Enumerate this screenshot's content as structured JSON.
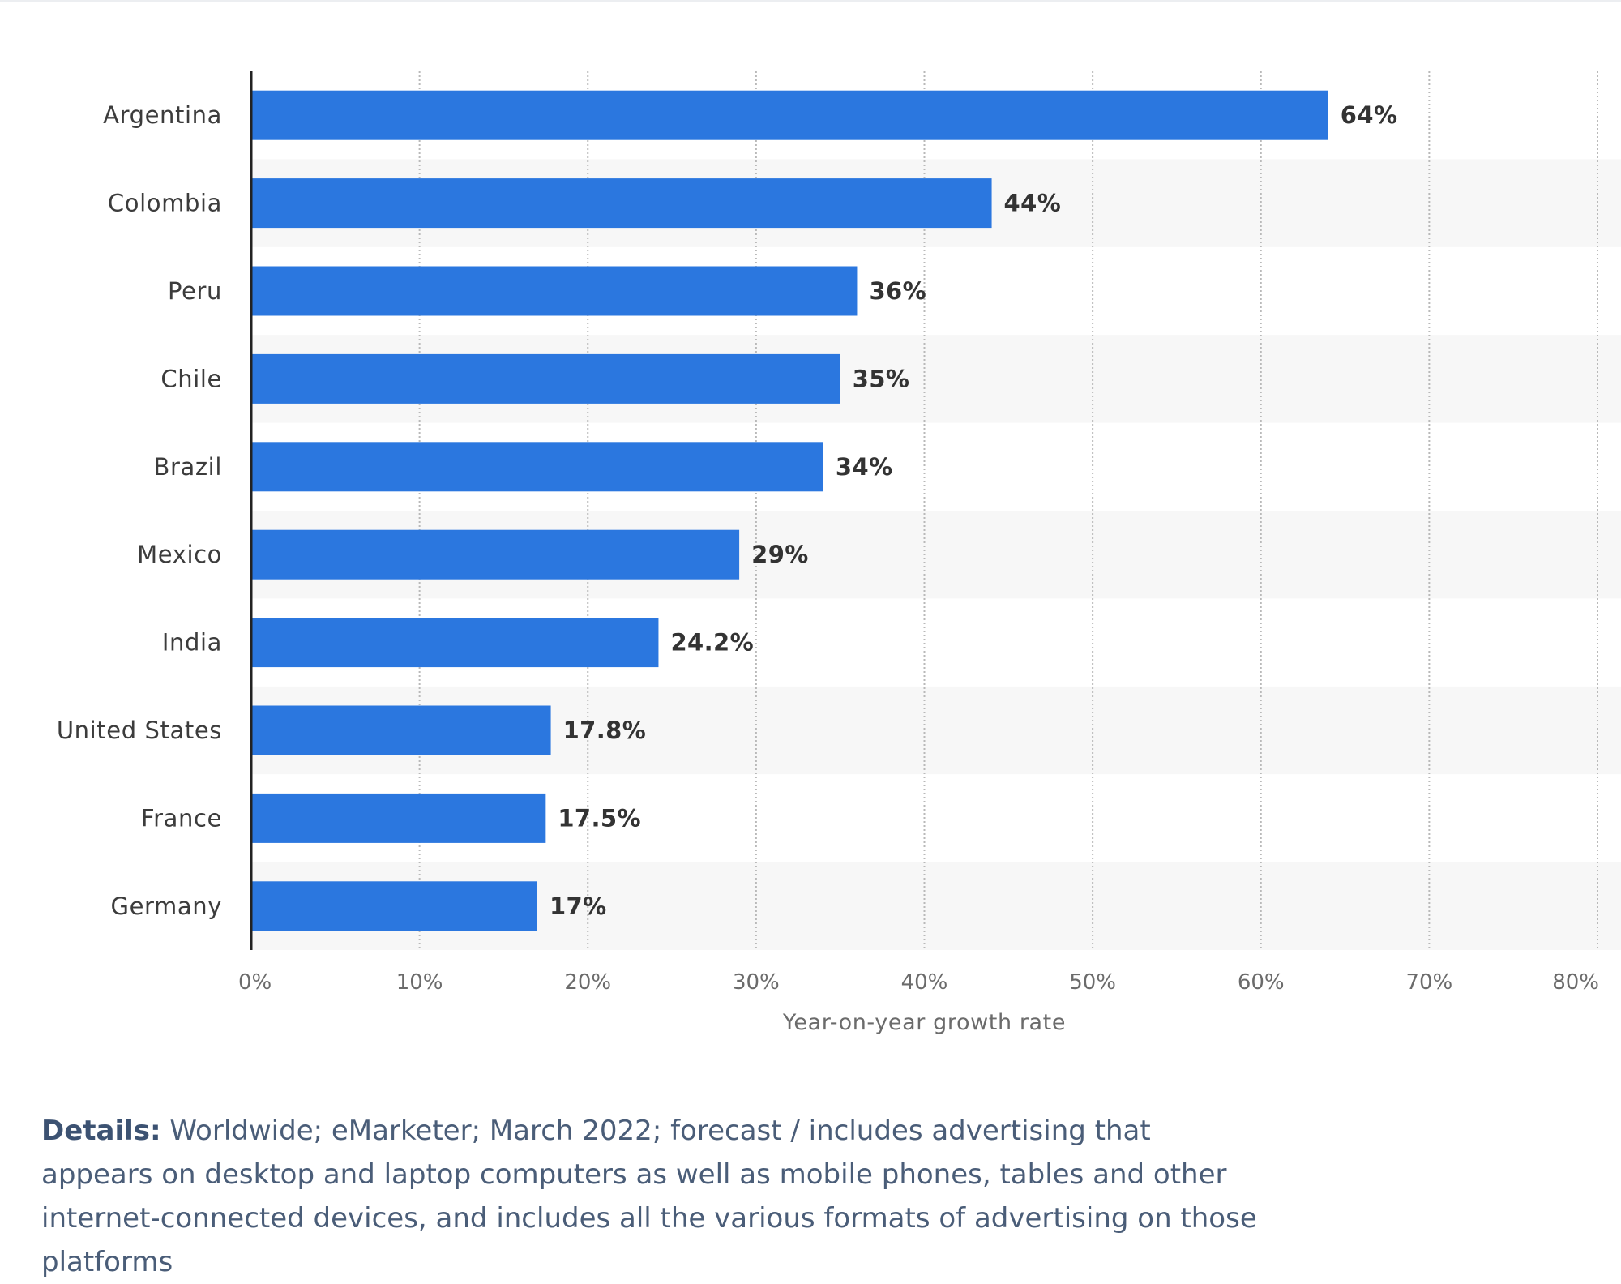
{
  "chart_data": {
    "type": "bar",
    "orientation": "horizontal",
    "categories": [
      "Argentina",
      "Colombia",
      "Peru",
      "Chile",
      "Brazil",
      "Mexico",
      "India",
      "United States",
      "France",
      "Germany"
    ],
    "values": [
      64,
      44,
      36,
      35,
      34,
      29,
      24.2,
      17.8,
      17.5,
      17
    ],
    "value_labels": [
      "64%",
      "44%",
      "36%",
      "35%",
      "34%",
      "29%",
      "24.2%",
      "17.8%",
      "17.5%",
      "17%"
    ],
    "xlabel": "Year-on-year growth rate",
    "xlim": [
      0,
      80
    ],
    "xticks": [
      "0%",
      "10%",
      "20%",
      "30%",
      "40%",
      "50%",
      "60%",
      "70%",
      "80%"
    ],
    "grid": "vertical dotted",
    "bar_color": "#2b77df",
    "stripe_color": "#f7f7f7"
  },
  "details": {
    "lead": "Details:",
    "text": " Worldwide; eMarketer; March 2022; forecast / includes advertising that appears on desktop and laptop computers as well as mobile phones, tables and other internet-connected devices, and includes all the various formats of advertising on those platforms"
  }
}
